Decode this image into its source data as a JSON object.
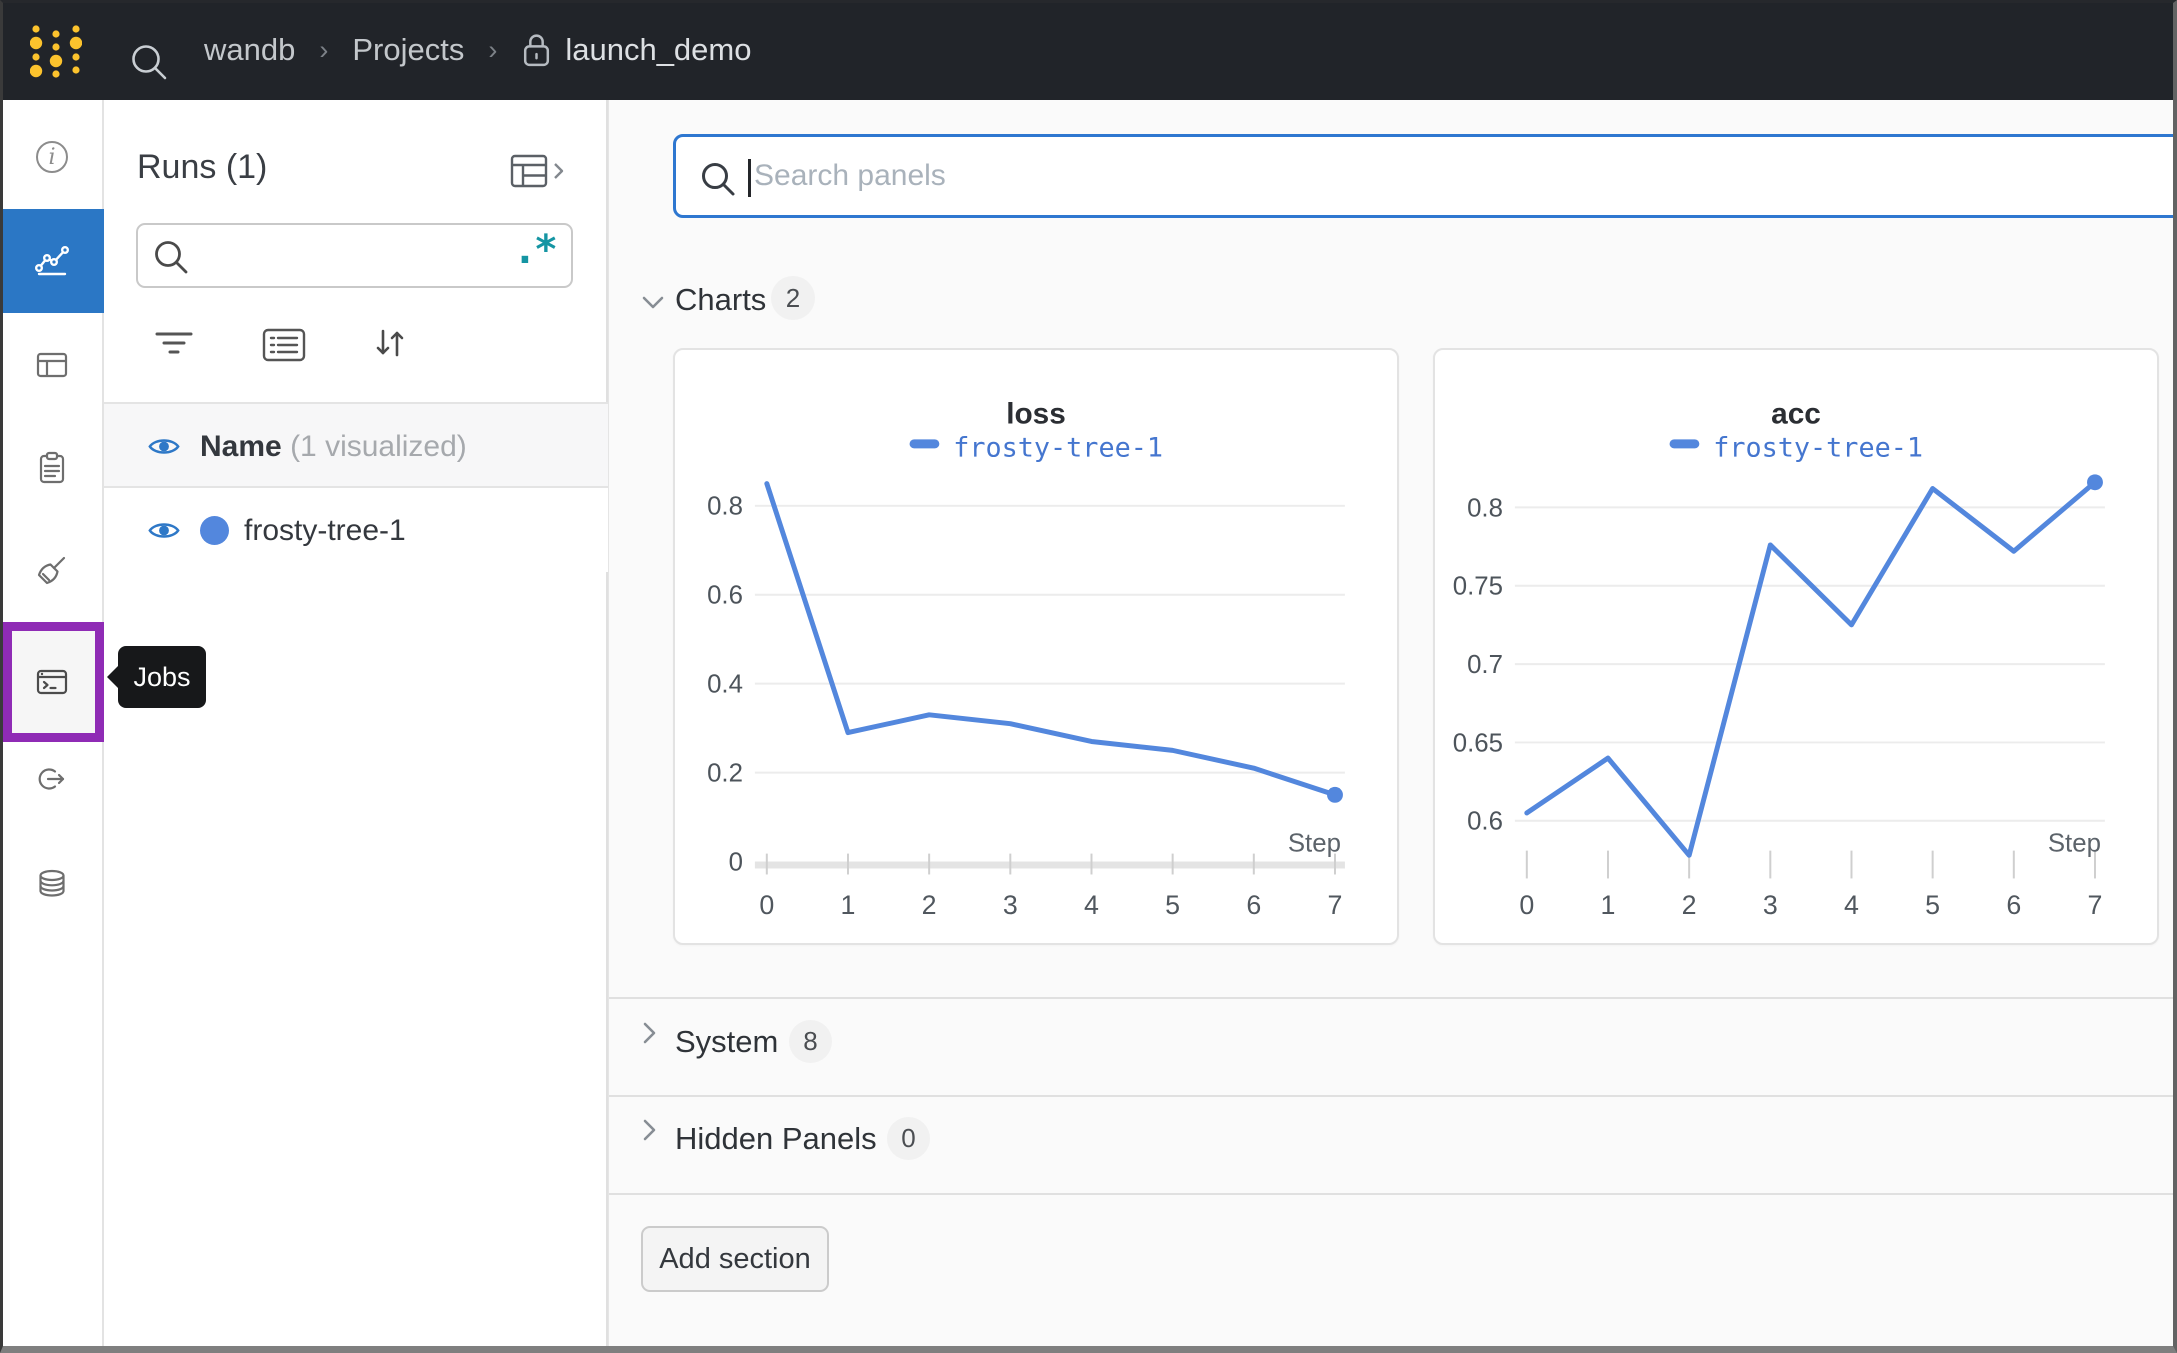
{
  "topbar": {
    "org": "wandb",
    "section": "Projects",
    "project": "launch_demo"
  },
  "sidebar": {
    "icons": [
      "overview",
      "workspace-charts",
      "panels",
      "notes",
      "sweeps",
      "jobs",
      "launch",
      "artifacts"
    ],
    "selected": "workspace-charts",
    "highlighted": "jobs",
    "tooltip": "Jobs"
  },
  "runs_panel": {
    "title": "Runs (1)",
    "search_value": "",
    "regex_icon": ".*",
    "header_name": "Name",
    "header_visualized": "(1 visualized)",
    "runs": [
      {
        "name": "frosty-tree-1"
      }
    ]
  },
  "main": {
    "search_placeholder": "Search panels",
    "sections": {
      "charts": {
        "label": "Charts",
        "count": "2"
      },
      "system": {
        "label": "System",
        "count": "8"
      },
      "hidden": {
        "label": "Hidden Panels",
        "count": "0"
      }
    },
    "add_section_label": "Add section"
  },
  "chart_data": [
    {
      "type": "line",
      "title": "loss",
      "xlabel": "Step",
      "ylabel": "",
      "x_ticks": [
        0,
        1,
        2,
        3,
        4,
        5,
        6,
        7
      ],
      "y_ticks": [
        0,
        0.2,
        0.4,
        0.6,
        0.8
      ],
      "y_tick_labels": [
        "0",
        "0.2",
        "0.4",
        "0.6",
        "0.8"
      ],
      "ylim": [
        0,
        0.86
      ],
      "grid": true,
      "x_axis_line": true,
      "legend_position": "top",
      "series": [
        {
          "name": "frosty-tree-1",
          "color": "#5387dd",
          "x": [
            0,
            1,
            2,
            3,
            4,
            5,
            6,
            7
          ],
          "values": [
            0.85,
            0.29,
            0.33,
            0.31,
            0.27,
            0.25,
            0.21,
            0.15
          ],
          "endpoint_dot": true
        }
      ]
    },
    {
      "type": "line",
      "title": "acc",
      "xlabel": "Step",
      "ylabel": "",
      "x_ticks": [
        0,
        1,
        2,
        3,
        4,
        5,
        6,
        7
      ],
      "y_ticks": [
        0.6,
        0.65,
        0.7,
        0.75,
        0.8
      ],
      "y_tick_labels": [
        "0.6",
        "0.65",
        "0.7",
        "0.75",
        "0.8"
      ],
      "ylim": [
        0.574,
        0.818
      ],
      "grid": true,
      "x_axis_line": false,
      "legend_position": "top",
      "series": [
        {
          "name": "frosty-tree-1",
          "color": "#5387dd",
          "x": [
            0,
            1,
            2,
            3,
            4,
            5,
            6,
            7
          ],
          "values": [
            0.605,
            0.64,
            0.578,
            0.776,
            0.725,
            0.812,
            0.772,
            0.816
          ],
          "endpoint_dot": true
        }
      ]
    }
  ],
  "colors": {
    "topbar_bg": "#212429",
    "logo_yellow": "#fcc32d",
    "selected_nav_blue": "#2b77c5",
    "jobs_highlight_purple": "#8f2bb5",
    "run_line_blue": "#5387dd",
    "eye_blue": "#2e78c7",
    "regex_teal": "#1595a3",
    "focused_input_blue": "#2e77d0",
    "main_bg": "#fafafa"
  }
}
